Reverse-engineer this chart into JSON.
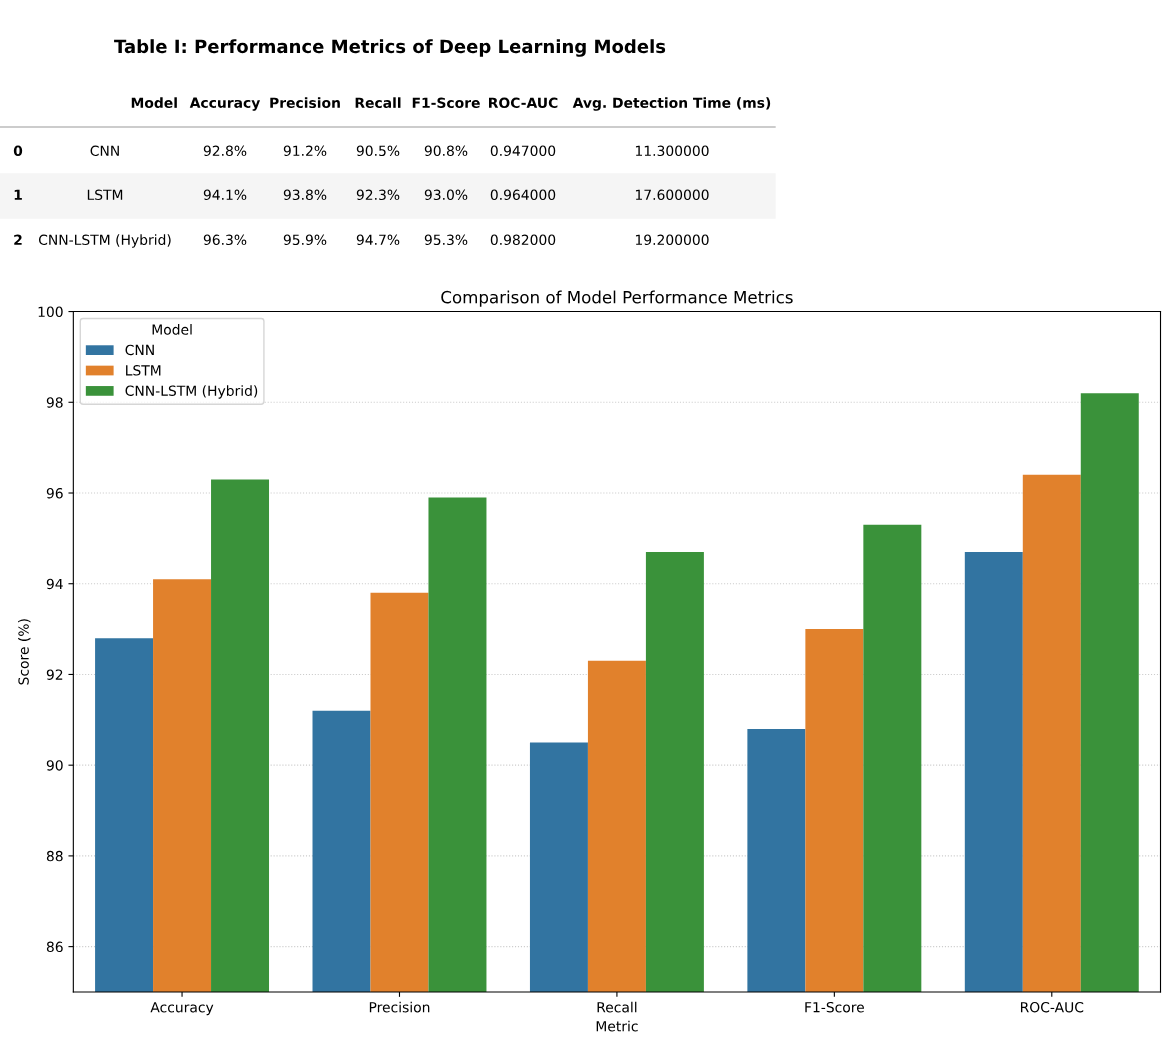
{
  "chart_data": [
    {
      "type": "other",
      "title": "Table I: Performance Metrics of Deep Learning Models",
      "categories": [
        null,
        "Model",
        "Accuracy",
        "Precision",
        "Recall",
        "F1-Score",
        "ROC-AUC",
        "Avg. Detection Time (ms)"
      ],
      "cell_labels": [
        [
          "0",
          "CNN",
          "92.8%",
          "91.2%",
          "90.5%",
          "90.8%",
          "0.947000",
          "11.300000"
        ],
        [
          "1",
          "LSTM",
          "94.1%",
          "93.8%",
          "92.3%",
          "93.0%",
          "0.964000",
          "17.600000"
        ],
        [
          "2",
          "CNN-LSTM (Hybrid)",
          "96.3%",
          "95.9%",
          "94.7%",
          "95.3%",
          "0.982000",
          "19.200000"
        ]
      ]
    },
    {
      "type": "bar",
      "title": "Comparison of Model Performance Metrics",
      "xlabel": "Metric",
      "ylabel": "Score (%)",
      "categories": [
        "Accuracy",
        "Precision",
        "Recall",
        "F1-Score",
        "ROC-AUC"
      ],
      "series": [
        {
          "name": "CNN",
          "color": "#3274a1",
          "values": [
            92.8,
            91.2,
            90.5,
            90.8,
            94.7
          ]
        },
        {
          "name": "LSTM",
          "color": "#e1812c",
          "values": [
            94.1,
            93.8,
            92.3,
            93.0,
            96.4
          ]
        },
        {
          "name": "CNN-LSTM (Hybrid)",
          "color": "#3a923a",
          "values": [
            96.3,
            95.9,
            94.7,
            95.3,
            98.2
          ]
        }
      ],
      "ylim": [
        85,
        100
      ],
      "yticks": [
        86,
        88,
        90,
        92,
        94,
        96,
        98,
        100
      ],
      "grid": "y",
      "legend": "top left",
      "legend_title": "Model"
    }
  ]
}
